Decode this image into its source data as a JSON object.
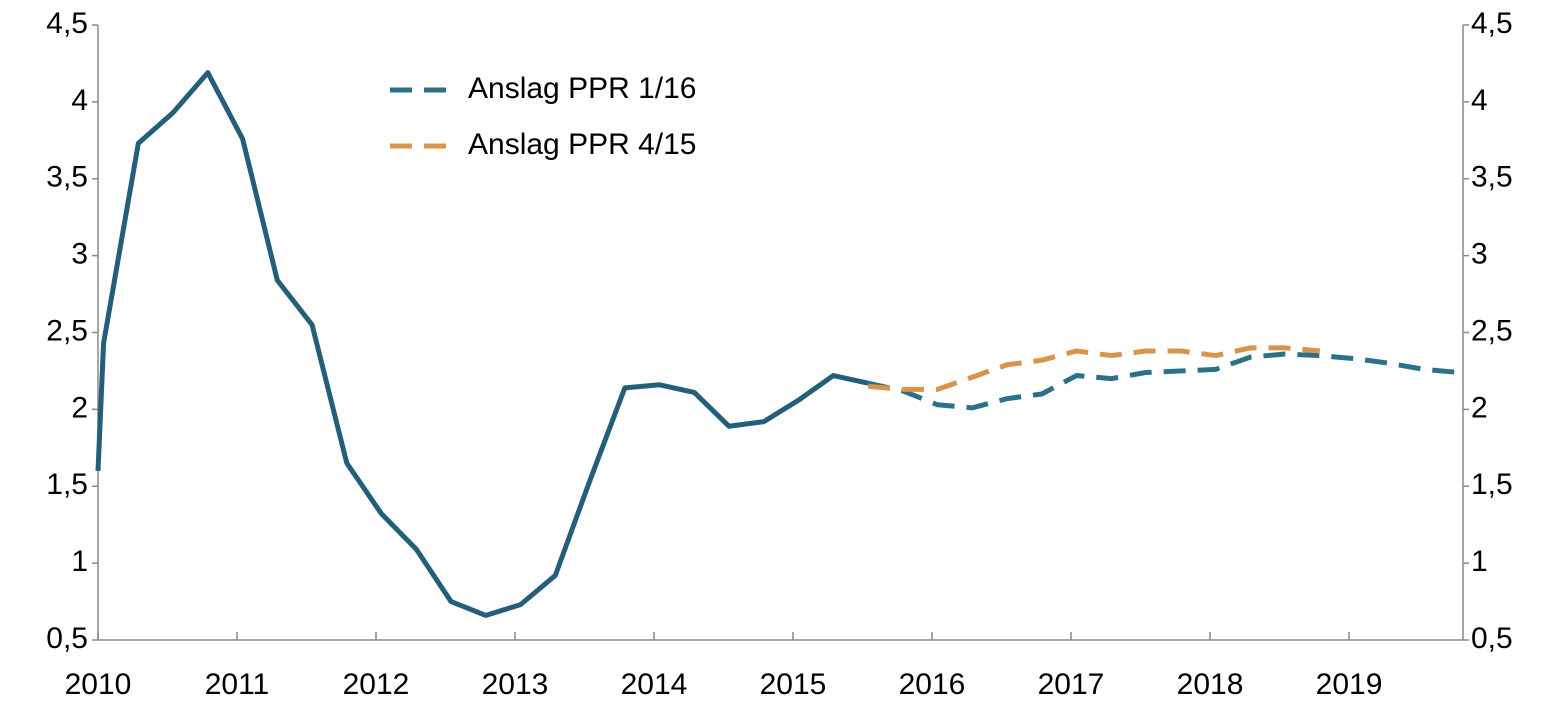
{
  "chart_data": {
    "type": "line",
    "xlim": [
      2010,
      2019.82
    ],
    "xticks": [
      2010,
      2011,
      2012,
      2013,
      2014,
      2015,
      2016,
      2017,
      2018,
      2019
    ],
    "ylim": [
      0.5,
      4.5
    ],
    "yticks": [
      {
        "value": 0.5,
        "label": "0,5"
      },
      1,
      {
        "value": 1.5,
        "label": "1,5"
      },
      2,
      {
        "value": 2.5,
        "label": "2,5"
      },
      3,
      {
        "value": 3.5,
        "label": "3,5"
      },
      4,
      {
        "value": 4.5,
        "label": "4,5"
      }
    ],
    "y2lim": [
      0.5,
      4.5
    ],
    "y2ticks": [
      {
        "value": 0.5,
        "label": "0,5"
      },
      1,
      {
        "value": 1.5,
        "label": "1,5"
      },
      2,
      {
        "value": 2.5,
        "label": "2,5"
      },
      3,
      {
        "value": 3.5,
        "label": "3,5"
      },
      4,
      {
        "value": 4.5,
        "label": "4,5"
      }
    ],
    "legend": "upper center",
    "series": [
      {
        "color": "#255e7a",
        "dash": false,
        "x": [
          2010.0,
          2010.04,
          2010.29,
          2010.54,
          2010.79,
          2011.04,
          2011.29,
          2011.54,
          2011.79,
          2012.04,
          2012.29,
          2012.54,
          2012.79,
          2013.04,
          2013.29,
          2013.54,
          2013.79,
          2014.04,
          2014.29,
          2014.54,
          2014.79,
          2015.04,
          2015.29,
          2015.54
        ],
        "values": [
          1.6,
          2.43,
          3.73,
          3.93,
          4.19,
          3.76,
          2.84,
          2.55,
          1.65,
          1.32,
          1.09,
          0.75,
          0.66,
          0.73,
          0.92,
          1.54,
          2.14,
          2.16,
          2.11,
          1.89,
          1.92,
          2.06,
          2.22,
          2.17
        ]
      },
      {
        "name": "Anslag PPR 1/16",
        "color": "#2b7289",
        "dash": true,
        "x": [
          2015.54,
          2015.79,
          2016.04,
          2016.29,
          2016.54,
          2016.79,
          2017.04,
          2017.29,
          2017.54,
          2017.79,
          2018.04,
          2018.29,
          2018.54,
          2018.79,
          2019.04,
          2019.29,
          2019.54,
          2019.79
        ],
        "values": [
          2.17,
          2.12,
          2.03,
          2.01,
          2.07,
          2.1,
          2.22,
          2.2,
          2.24,
          2.25,
          2.26,
          2.34,
          2.36,
          2.35,
          2.33,
          2.3,
          2.26,
          2.24
        ]
      },
      {
        "name": "Anslag PPR 4/15",
        "color": "#d7944a",
        "dash": true,
        "x": [
          2015.54,
          2015.79,
          2016.04,
          2016.29,
          2016.54,
          2016.79,
          2017.04,
          2017.29,
          2017.54,
          2017.79,
          2018.04,
          2018.29,
          2018.54,
          2018.79
        ],
        "values": [
          2.15,
          2.13,
          2.13,
          2.21,
          2.29,
          2.32,
          2.38,
          2.35,
          2.38,
          2.38,
          2.35,
          2.4,
          2.4,
          2.38
        ]
      }
    ]
  }
}
